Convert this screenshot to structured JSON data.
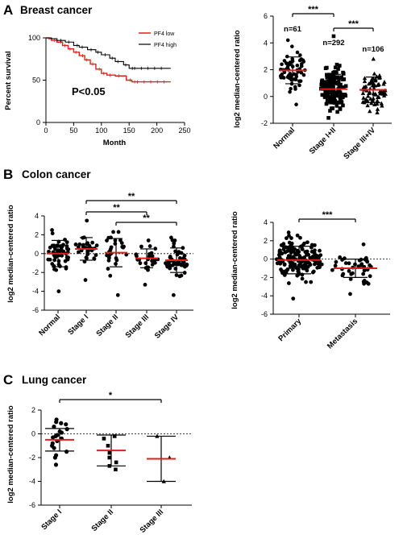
{
  "panels": {
    "A": {
      "label": "A",
      "title": "Breast cancer"
    },
    "B": {
      "label": "B",
      "title": "Colon cancer"
    },
    "C": {
      "label": "C",
      "title": "Lung cancer"
    }
  },
  "colors": {
    "red": "#e0201b",
    "black": "#000000"
  },
  "chart_data": [
    {
      "id": "A-survival",
      "type": "line",
      "xlabel": "Month",
      "ylabel": "Percent survival",
      "xlim": [
        0,
        250
      ],
      "ylim": [
        0,
        100
      ],
      "xticks": [
        0,
        50,
        100,
        150,
        200,
        250
      ],
      "yticks": [
        0,
        50,
        100
      ],
      "annotation": "P<0.05",
      "legend_position": "top-right",
      "series": [
        {
          "name": "PF4 low",
          "color": "#e0201b",
          "x": [
            0,
            5,
            10,
            20,
            30,
            40,
            50,
            60,
            70,
            80,
            90,
            100,
            110,
            125,
            145,
            155,
            225
          ],
          "y": [
            100,
            99,
            97,
            95,
            91,
            87,
            83,
            79,
            74,
            69,
            63,
            58,
            56,
            55,
            50,
            48,
            48
          ]
        },
        {
          "name": "PF4 high",
          "color": "#000000",
          "x": [
            0,
            10,
            20,
            35,
            50,
            60,
            75,
            90,
            100,
            115,
            125,
            140,
            150,
            225
          ],
          "y": [
            100,
            99,
            97,
            95,
            91,
            89,
            86,
            83,
            80,
            76,
            72,
            68,
            64,
            64
          ]
        }
      ]
    },
    {
      "id": "A-stage",
      "type": "scatter",
      "ylabel": "log2 median-centered ratio",
      "ylim": [
        -2,
        6
      ],
      "yticks": [
        -2,
        0,
        2,
        4,
        6
      ],
      "categories": [
        "Normal",
        "Stage I+II",
        "Stage III+IV"
      ],
      "n_labels": [
        "n=61",
        "n=292",
        "n=106"
      ],
      "mean": [
        1.95,
        0.55,
        0.5
      ],
      "sd": [
        1.0,
        1.1,
        0.95
      ],
      "point_spread": [
        [
          -0.6,
          4.2
        ],
        [
          -1.6,
          4.5
        ],
        [
          -1.2,
          2.8
        ]
      ],
      "n_points": [
        61,
        150,
        70
      ],
      "significance": [
        {
          "from": 0,
          "to": 1,
          "label": "***"
        },
        {
          "from": 1,
          "to": 2,
          "label": "***"
        }
      ]
    },
    {
      "id": "B-stage",
      "type": "scatter",
      "ylabel": "log2 median-centered ratio",
      "ylim": [
        -6,
        4
      ],
      "yticks": [
        -6,
        -4,
        -2,
        0,
        2,
        4
      ],
      "categories": [
        "Normal",
        "Stage I",
        "Stage II",
        "Stage III",
        "Stage IV"
      ],
      "mean": [
        0.0,
        0.5,
        0.1,
        -0.5,
        -0.7
      ],
      "sd": [
        1.4,
        1.2,
        1.5,
        1.0,
        1.3
      ],
      "point_spread": [
        [
          -4.0,
          2.5
        ],
        [
          -2.8,
          3.5
        ],
        [
          -4.4,
          2.3
        ],
        [
          -3.3,
          1.4
        ],
        [
          -4.4,
          1.7
        ]
      ],
      "n_points": [
        55,
        28,
        26,
        24,
        50
      ],
      "significance": [
        {
          "from": 1,
          "to": 4,
          "label": "**"
        },
        {
          "from": 1,
          "to": 3,
          "label": "**"
        },
        {
          "from": 2,
          "to": 4,
          "label": "**"
        }
      ]
    },
    {
      "id": "B-metastasis",
      "type": "scatter",
      "ylabel": "log2 median-centered ratio",
      "ylim": [
        -6,
        4
      ],
      "yticks": [
        -6,
        -4,
        -2,
        0,
        2,
        4
      ],
      "categories": [
        "Primary",
        "Metastasis"
      ],
      "mean": [
        -0.1,
        -1.0
      ],
      "sd": [
        1.5,
        1.0
      ],
      "point_spread": [
        [
          -4.3,
          2.9
        ],
        [
          -3.8,
          1.6
        ]
      ],
      "n_points": [
        170,
        40
      ],
      "significance": [
        {
          "from": 0,
          "to": 1,
          "label": "***"
        }
      ]
    },
    {
      "id": "C-stage",
      "type": "scatter",
      "ylabel": "log2 median-centered ratio",
      "ylim": [
        -6,
        2
      ],
      "yticks": [
        -6,
        -4,
        -2,
        0,
        2
      ],
      "categories": [
        "Stage I",
        "Stage II",
        "Stage III"
      ],
      "mean": [
        -0.5,
        -1.4,
        -2.1
      ],
      "sd": [
        0.95,
        1.3,
        1.9
      ],
      "points": [
        [
          1.2,
          1.0,
          0.8,
          0.9,
          0.6,
          0.4,
          0.2,
          0.1,
          -0.1,
          -0.2,
          -0.3,
          -0.4,
          -0.6,
          -0.8,
          -1.0,
          -1.2,
          -1.5,
          -1.8,
          -2.0,
          -2.6
        ],
        [
          -0.2,
          -0.4,
          -1.0,
          -1.6,
          -2.0,
          -2.4,
          -2.7,
          -3.0
        ],
        [
          -0.2,
          -2.0,
          -4.0
        ]
      ],
      "significance": [
        {
          "from": 0,
          "to": 2,
          "label": "*"
        }
      ]
    }
  ]
}
